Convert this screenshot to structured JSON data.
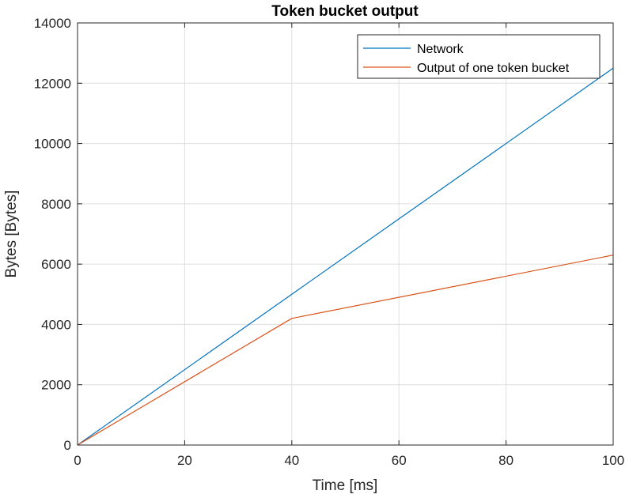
{
  "chart_data": {
    "type": "line",
    "title": "Token bucket output",
    "xlabel": "Time [ms]",
    "ylabel": "Bytes [Bytes]",
    "xlim": [
      0,
      100
    ],
    "ylim": [
      0,
      14000
    ],
    "xticks": [
      0,
      20,
      40,
      60,
      80,
      100
    ],
    "yticks": [
      0,
      2000,
      4000,
      6000,
      8000,
      10000,
      12000,
      14000
    ],
    "grid": true,
    "legend_position": "top-right",
    "series": [
      {
        "name": "Network",
        "color": "#0072BD",
        "x": [
          0,
          100
        ],
        "y": [
          0,
          12500
        ]
      },
      {
        "name": "Output of one token bucket",
        "color": "#D95319",
        "x": [
          0,
          40,
          100
        ],
        "y": [
          0,
          4200,
          6300
        ]
      }
    ]
  }
}
